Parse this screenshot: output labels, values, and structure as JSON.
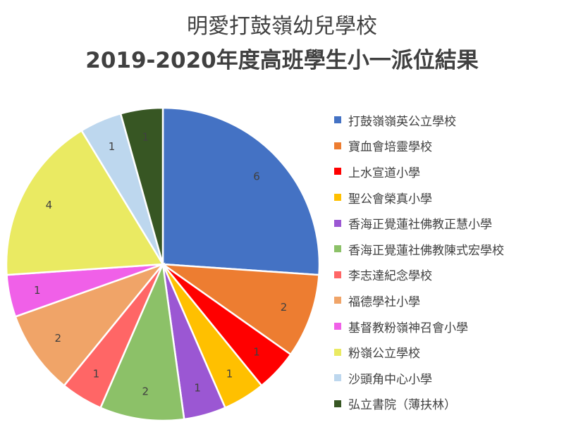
{
  "chart_data": {
    "type": "pie",
    "title": "明愛打鼓嶺幼兒學校",
    "subtitle": "2019-2020年度高班學生小一派位結果",
    "legend_position": "right",
    "slices": [
      {
        "label": "打鼓嶺嶺英公立學校",
        "value": 6,
        "color": "#4472C4"
      },
      {
        "label": "寶血會培靈學校",
        "value": 2,
        "color": "#ED7D31"
      },
      {
        "label": "上水宣道小學",
        "value": 1,
        "color": "#FF0000"
      },
      {
        "label": "聖公會榮真小學",
        "value": 1,
        "color": "#FFC000"
      },
      {
        "label": "香海正覺蓮社佛教正慧小學",
        "value": 1,
        "color": "#9B57D3"
      },
      {
        "label": "香海正覺蓮社佛教陳式宏學校",
        "value": 2,
        "color": "#8CC168"
      },
      {
        "label": "李志達紀念學校",
        "value": 1,
        "color": "#FF6666"
      },
      {
        "label": "福德學社小學",
        "value": 2,
        "color": "#F0A468"
      },
      {
        "label": "基督教粉嶺神召會小學",
        "value": 1,
        "color": "#F060E8"
      },
      {
        "label": "粉嶺公立學校",
        "value": 4,
        "color": "#EAEA62"
      },
      {
        "label": "沙頭角中心小學",
        "value": 1,
        "color": "#BDD7EE"
      },
      {
        "label": "弘立書院（薄扶林）",
        "value": 1,
        "color": "#375623"
      }
    ]
  }
}
